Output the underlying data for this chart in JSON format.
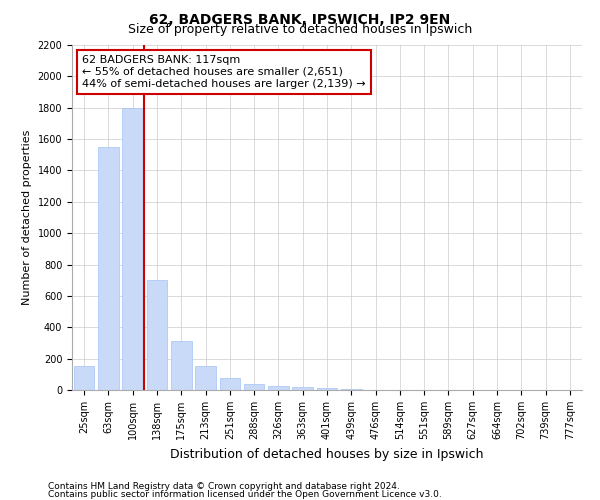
{
  "title": "62, BADGERS BANK, IPSWICH, IP2 9EN",
  "subtitle": "Size of property relative to detached houses in Ipswich",
  "xlabel": "Distribution of detached houses by size in Ipswich",
  "ylabel": "Number of detached properties",
  "categories": [
    "25sqm",
    "63sqm",
    "100sqm",
    "138sqm",
    "175sqm",
    "213sqm",
    "251sqm",
    "288sqm",
    "326sqm",
    "363sqm",
    "401sqm",
    "439sqm",
    "476sqm",
    "514sqm",
    "551sqm",
    "589sqm",
    "627sqm",
    "664sqm",
    "702sqm",
    "739sqm",
    "777sqm"
  ],
  "values": [
    150,
    1550,
    1800,
    700,
    310,
    155,
    75,
    40,
    25,
    20,
    10,
    5,
    3,
    2,
    1,
    1,
    0,
    0,
    0,
    0,
    0
  ],
  "bar_color": "#c9daf8",
  "bar_edge_color": "#a4c2f4",
  "vline_color": "#cc0000",
  "vline_pos": 2.447,
  "annotation_line1": "62 BADGERS BANK: 117sqm",
  "annotation_line2": "← 55% of detached houses are smaller (2,651)",
  "annotation_line3": "44% of semi-detached houses are larger (2,139) →",
  "annotation_box_color": "#ffffff",
  "annotation_box_edge": "#cc0000",
  "ylim": [
    0,
    2200
  ],
  "yticks": [
    0,
    200,
    400,
    600,
    800,
    1000,
    1200,
    1400,
    1600,
    1800,
    2000,
    2200
  ],
  "footer1": "Contains HM Land Registry data © Crown copyright and database right 2024.",
  "footer2": "Contains public sector information licensed under the Open Government Licence v3.0.",
  "background_color": "#ffffff",
  "grid_color": "#cccccc",
  "title_fontsize": 10,
  "subtitle_fontsize": 9,
  "xlabel_fontsize": 9,
  "ylabel_fontsize": 8,
  "tick_fontsize": 7,
  "annotation_fontsize": 8,
  "footer_fontsize": 6.5
}
